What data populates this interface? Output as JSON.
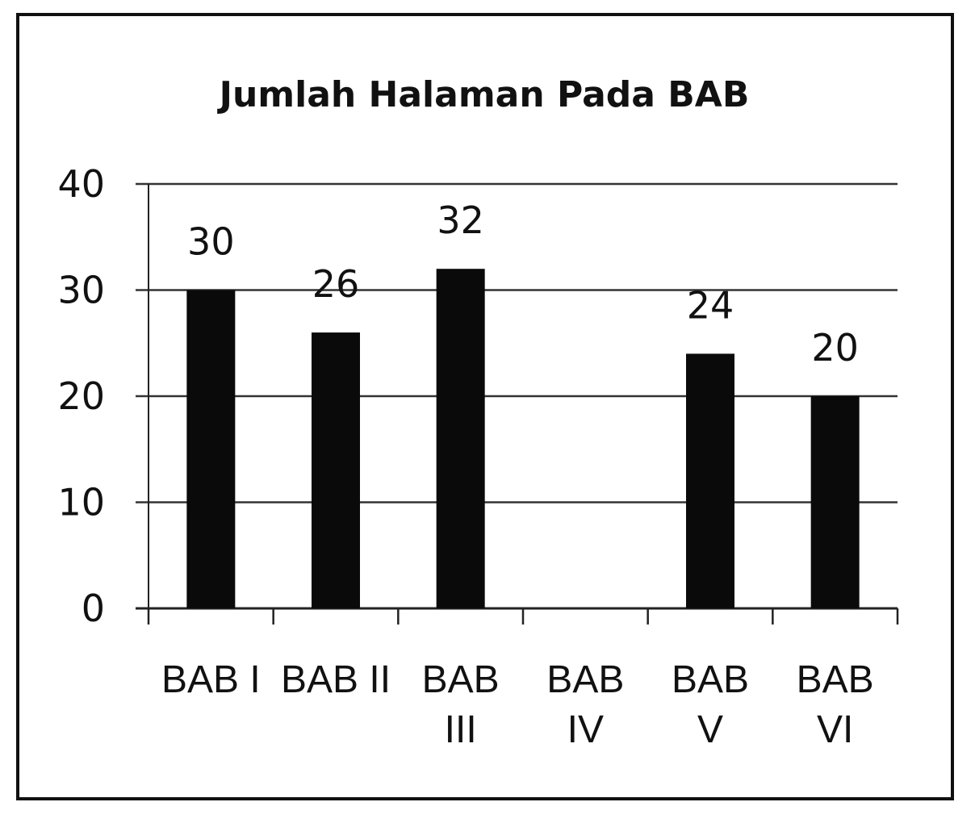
{
  "chart_data": {
    "type": "bar",
    "title": "Jumlah Halaman Pada BAB",
    "categories": [
      [
        "BAB I"
      ],
      [
        "BAB II"
      ],
      [
        "BAB",
        "III"
      ],
      [
        "BAB",
        "IV"
      ],
      [
        "BAB",
        "V"
      ],
      [
        "BAB",
        "VI"
      ]
    ],
    "values": [
      30,
      26,
      32,
      null,
      24,
      20
    ],
    "data_labels": [
      "30",
      "26",
      "32",
      "",
      "24",
      "20"
    ],
    "y_ticks": [
      "0",
      "10",
      "20",
      "30",
      "40"
    ],
    "ylim": [
      0,
      40
    ],
    "xlabel": "",
    "ylabel": "",
    "grid": true,
    "legend": "none",
    "colors": {
      "bar": "#0a0a0a",
      "grid": "#333333",
      "axis": "#222222",
      "text": "#111111"
    }
  }
}
